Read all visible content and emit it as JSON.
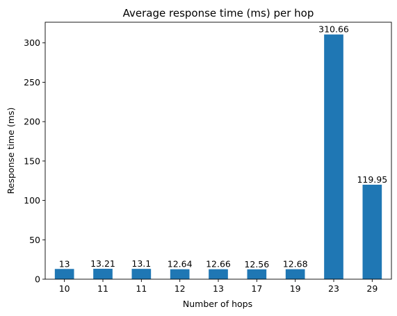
{
  "chart_data": {
    "type": "bar",
    "title": "Average response time (ms) per hop",
    "xlabel": "Number of hops",
    "ylabel": "Response time (ms)",
    "categories": [
      "10",
      "11",
      "11",
      "12",
      "13",
      "17",
      "19",
      "23",
      "29"
    ],
    "values": [
      13,
      13.21,
      13.1,
      12.64,
      12.66,
      12.56,
      12.68,
      310.66,
      119.95
    ],
    "data_labels": [
      "13",
      "13.21",
      "13.1",
      "12.64",
      "12.66",
      "12.56",
      "12.68",
      "310.66",
      "119.95"
    ],
    "ylim": [
      0,
      326.2
    ],
    "yticks": [
      0,
      50,
      100,
      150,
      200,
      250,
      300
    ],
    "grid": false,
    "legend": "none",
    "bar_color": "#1f77b4"
  }
}
